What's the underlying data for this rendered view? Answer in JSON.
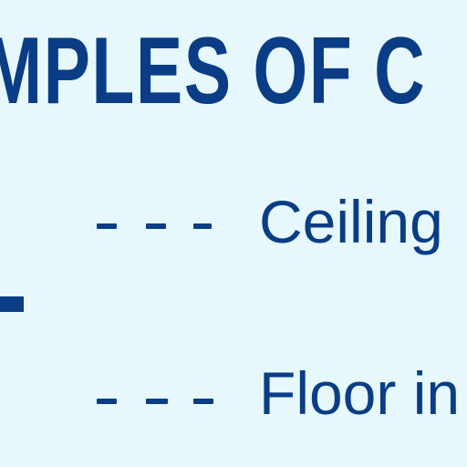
{
  "heading": {
    "text": "MPLES OF C"
  },
  "items": [
    {
      "label": "Ceiling"
    },
    {
      "label": "Floor in"
    }
  ],
  "colors": {
    "background": "#e6f8fc",
    "text": "#0a3d86"
  }
}
